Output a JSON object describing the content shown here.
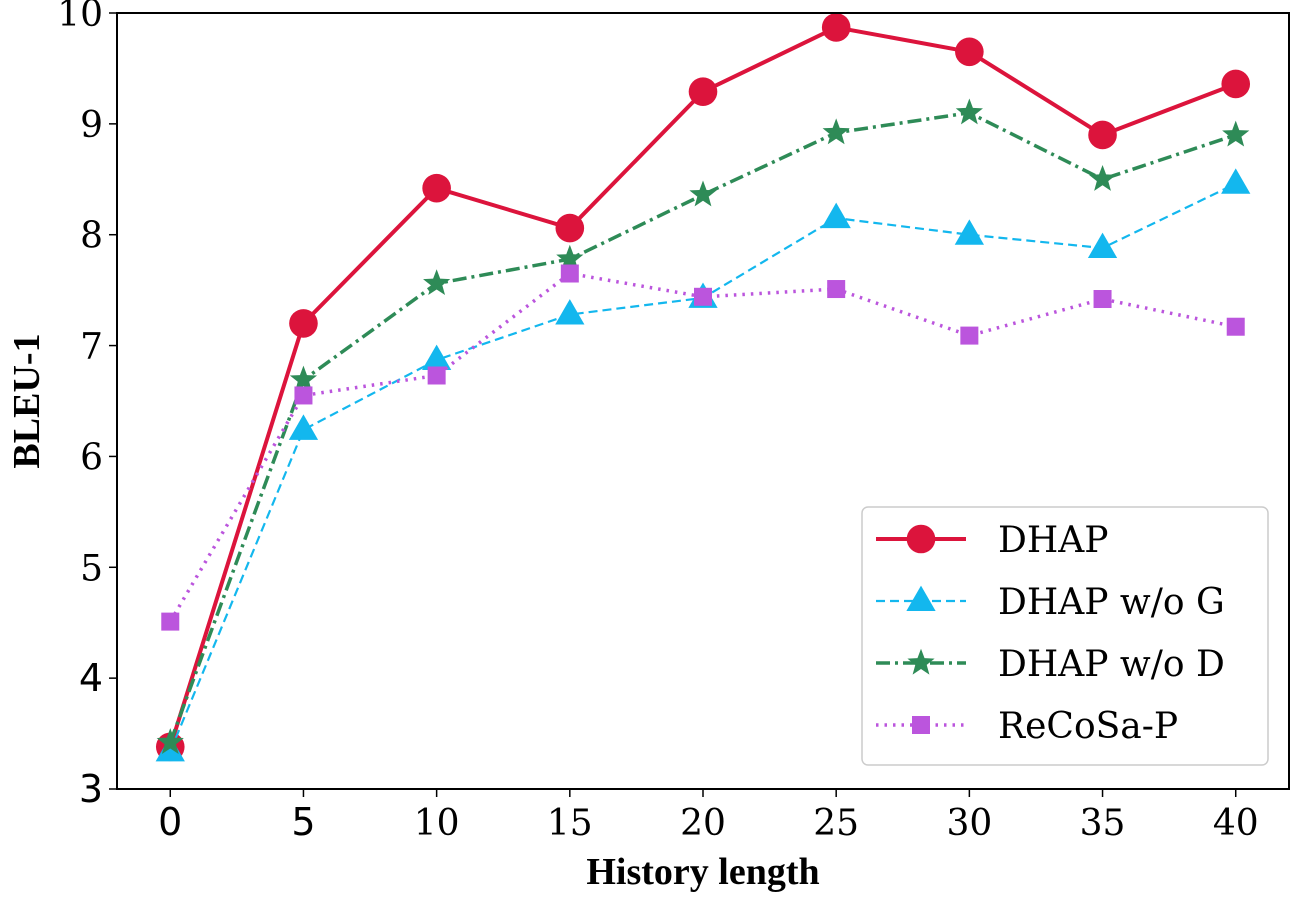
{
  "chart_data": {
    "type": "line",
    "title": "",
    "xlabel": "History length",
    "ylabel": "BLEU-1",
    "x": [
      0,
      5,
      10,
      15,
      20,
      25,
      30,
      35,
      40
    ],
    "x_tick_labels": [
      "0",
      "5",
      "10",
      "15",
      "20",
      "25",
      "30",
      "35",
      "40"
    ],
    "y_ticks": [
      3,
      4,
      5,
      6,
      7,
      8,
      9,
      10
    ],
    "y_tick_labels": [
      "3",
      "4",
      "5",
      "6",
      "7",
      "8",
      "9",
      "10"
    ],
    "xlim": [
      -2,
      42
    ],
    "ylim": [
      3,
      10
    ],
    "grid": false,
    "legend_position": "bottom-right",
    "series": [
      {
        "name": "DHAP",
        "values": [
          3.38,
          7.2,
          8.42,
          8.06,
          9.29,
          9.87,
          9.65,
          8.9,
          9.36
        ],
        "color": "#dc143c",
        "marker": "circle",
        "line_style": "solid"
      },
      {
        "name": "DHAP w/o G",
        "values": [
          3.34,
          6.24,
          6.87,
          7.28,
          7.43,
          8.15,
          8.0,
          7.88,
          8.46
        ],
        "color": "#13b7ee",
        "marker": "triangle",
        "line_style": "dashed"
      },
      {
        "name": "DHAP w/o D",
        "values": [
          3.42,
          6.69,
          7.56,
          7.78,
          8.36,
          8.92,
          9.1,
          8.5,
          8.9
        ],
        "color": "#2e8b57",
        "marker": "star",
        "line_style": "dashdot"
      },
      {
        "name": "ReCoSa-P",
        "values": [
          4.51,
          6.55,
          6.73,
          7.65,
          7.44,
          7.51,
          7.09,
          7.42,
          7.17
        ],
        "color": "#bb55dd",
        "marker": "square",
        "line_style": "dotted"
      }
    ]
  }
}
